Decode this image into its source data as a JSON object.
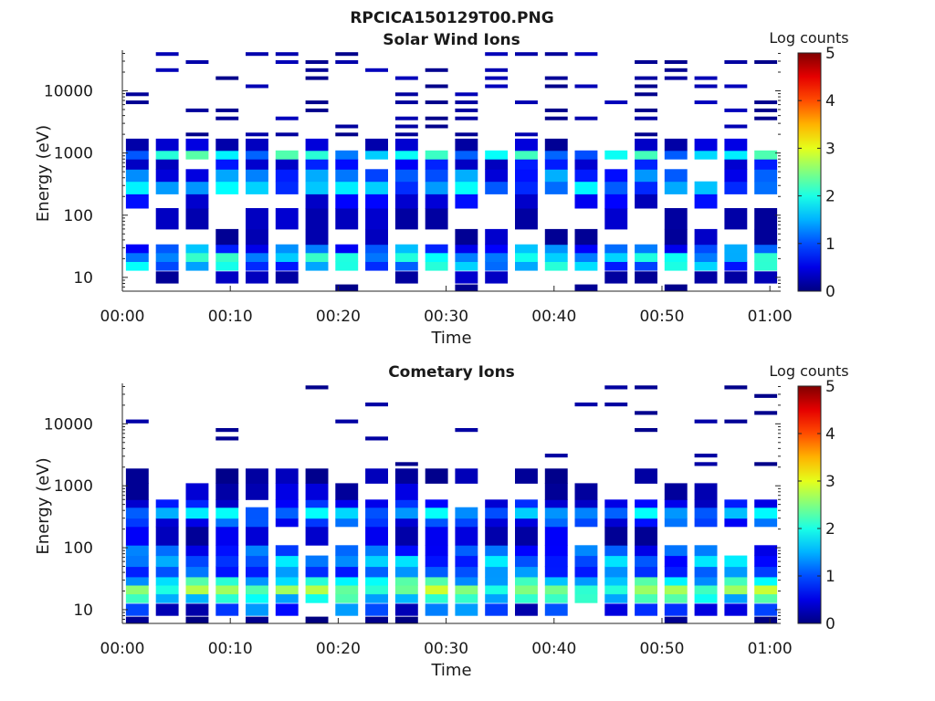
{
  "figure_title": "RPCICA150129T00.PNG",
  "chart_data": [
    {
      "type": "heatmap",
      "title": "Solar Wind Ions",
      "xlabel": "Time",
      "ylabel": "Energy (eV)",
      "x_ticks": [
        "00:00",
        "00:10",
        "00:20",
        "00:30",
        "00:40",
        "00:50",
        "01:00"
      ],
      "x_tick_minutes": [
        0,
        10,
        20,
        30,
        40,
        50,
        60
      ],
      "xlim_minutes": [
        0,
        61
      ],
      "y_scale": "log",
      "ylim": [
        6,
        45000
      ],
      "y_ticks": [
        "10",
        "100",
        "1000",
        "10000"
      ],
      "y_tick_values": [
        10,
        100,
        1000,
        10000
      ],
      "colorbar": {
        "label": "Log counts",
        "range": [
          0,
          5
        ],
        "ticks": [
          "0",
          "1",
          "2",
          "3",
          "4",
          "5"
        ],
        "colormap": "jet"
      },
      "columns": 22,
      "bands": [
        {
          "e_min": 6.2,
          "e_max": 7.7,
          "presence": 0.2,
          "min": 0,
          "max": 0.1
        },
        {
          "e_min": 8.1,
          "e_max": 12.5,
          "presence": 0.5,
          "min": 0.1,
          "max": 0.4
        },
        {
          "e_min": 13,
          "e_max": 18,
          "presence": 1.0,
          "min": 0.7,
          "max": 2.1
        },
        {
          "e_min": 18,
          "e_max": 25,
          "presence": 1.0,
          "min": 1.2,
          "max": 2.2
        },
        {
          "e_min": 25,
          "e_max": 34,
          "presence": 1.0,
          "min": 0.5,
          "max": 1.6
        },
        {
          "e_min": 34,
          "e_max": 60,
          "presence": 0.55,
          "min": 0.1,
          "max": 0.4
        },
        {
          "e_min": 60,
          "e_max": 130,
          "presence": 0.45,
          "min": 0.1,
          "max": 0.4
        },
        {
          "e_min": 130,
          "e_max": 220,
          "presence": 0.6,
          "min": 0.2,
          "max": 0.7
        },
        {
          "e_min": 220,
          "e_max": 350,
          "presence": 1.0,
          "min": 0.8,
          "max": 1.9
        },
        {
          "e_min": 350,
          "e_max": 550,
          "presence": 0.95,
          "min": 0.4,
          "max": 1.5
        },
        {
          "e_min": 550,
          "e_max": 800,
          "presence": 0.9,
          "min": 0.3,
          "max": 0.8
        },
        {
          "e_min": 800,
          "e_max": 1100,
          "presence": 1.0,
          "min": 1.0,
          "max": 2.3
        },
        {
          "e_min": 1100,
          "e_max": 1700,
          "presence": 0.7,
          "min": 0.1,
          "max": 0.5
        },
        {
          "e_min": 1700,
          "e_max": 45000,
          "presence": 0.3,
          "min": 0.05,
          "max": 0.3
        }
      ]
    },
    {
      "type": "heatmap",
      "title": "Cometary Ions",
      "xlabel": "Time",
      "ylabel": "Energy (eV)",
      "x_ticks": [
        "00:00",
        "00:10",
        "00:20",
        "00:30",
        "00:40",
        "00:50",
        "01:00"
      ],
      "x_tick_minutes": [
        0,
        10,
        20,
        30,
        40,
        50,
        60
      ],
      "xlim_minutes": [
        0,
        61
      ],
      "y_scale": "log",
      "ylim": [
        6,
        45000
      ],
      "y_ticks": [
        "10",
        "100",
        "1000",
        "10000"
      ],
      "y_tick_values": [
        10,
        100,
        1000,
        10000
      ],
      "colorbar": {
        "label": "Log counts",
        "range": [
          0,
          5
        ],
        "ticks": [
          "0",
          "1",
          "2",
          "3",
          "4",
          "5"
        ],
        "colormap": "jet"
      },
      "columns": 22,
      "bands": [
        {
          "e_min": 6.2,
          "e_max": 7.7,
          "presence": 0.2,
          "min": 0,
          "max": 0.1
        },
        {
          "e_min": 8.1,
          "e_max": 12.5,
          "presence": 0.85,
          "min": 0.2,
          "max": 1.4
        },
        {
          "e_min": 13,
          "e_max": 18,
          "presence": 1.0,
          "min": 1.4,
          "max": 2.3
        },
        {
          "e_min": 18,
          "e_max": 25,
          "presence": 1.0,
          "min": 2.0,
          "max": 2.9
        },
        {
          "e_min": 25,
          "e_max": 34,
          "presence": 1.0,
          "min": 1.3,
          "max": 2.3
        },
        {
          "e_min": 34,
          "e_max": 50,
          "presence": 1.0,
          "min": 0.7,
          "max": 1.4
        },
        {
          "e_min": 50,
          "e_max": 75,
          "presence": 1.0,
          "min": 0.6,
          "max": 1.8
        },
        {
          "e_min": 75,
          "e_max": 110,
          "presence": 0.95,
          "min": 0.5,
          "max": 1.3
        },
        {
          "e_min": 110,
          "e_max": 220,
          "presence": 0.6,
          "min": 0.1,
          "max": 0.6
        },
        {
          "e_min": 220,
          "e_max": 300,
          "presence": 1.0,
          "min": 0.4,
          "max": 1.2
        },
        {
          "e_min": 300,
          "e_max": 450,
          "presence": 1.0,
          "min": 1.0,
          "max": 1.9
        },
        {
          "e_min": 450,
          "e_max": 600,
          "presence": 0.95,
          "min": 0.3,
          "max": 0.9
        },
        {
          "e_min": 600,
          "e_max": 1100,
          "presence": 0.65,
          "min": 0.1,
          "max": 0.5
        },
        {
          "e_min": 1100,
          "e_max": 1900,
          "presence": 0.5,
          "min": 0.05,
          "max": 0.3
        },
        {
          "e_min": 1900,
          "e_max": 45000,
          "presence": 0.15,
          "min": 0.05,
          "max": 0.2
        }
      ]
    }
  ]
}
